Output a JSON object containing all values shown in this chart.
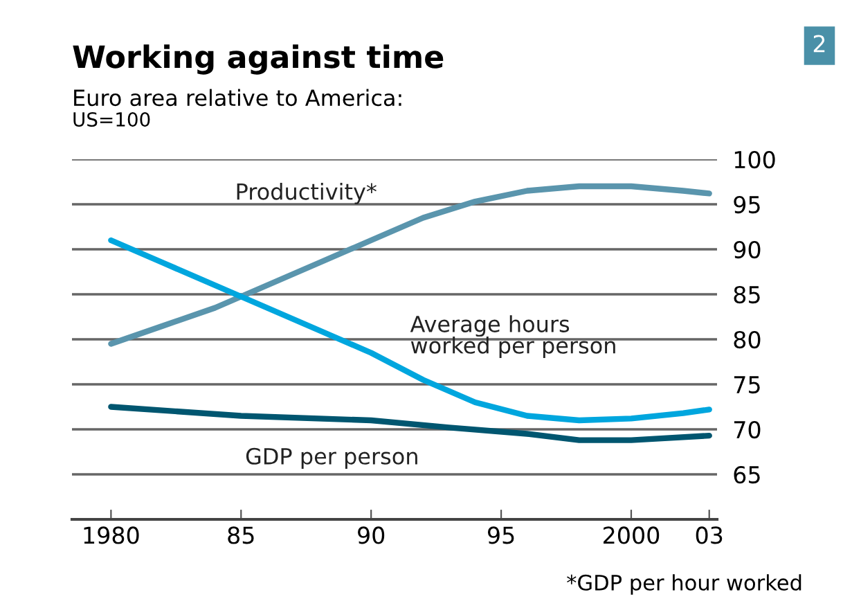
{
  "chart_data": {
    "type": "line",
    "title": "Working against time",
    "subtitle": "Euro area relative to America:",
    "ylabel": "US=100",
    "series": [
      {
        "name": "Productivity*",
        "color": "#5a95ad",
        "x": [
          1980,
          1982,
          1984,
          1986,
          1988,
          1990,
          1992,
          1994,
          1996,
          1998,
          2000,
          2002,
          2003
        ],
        "values": [
          79.5,
          81.5,
          83.5,
          86,
          88.5,
          91,
          93.5,
          95.3,
          96.5,
          97,
          97,
          96.5,
          96.2
        ]
      },
      {
        "name": "Average hours worked per person",
        "color": "#00a6de",
        "x": [
          1980,
          1982,
          1984,
          1986,
          1988,
          1990,
          1992,
          1994,
          1996,
          1998,
          2000,
          2002,
          2003
        ],
        "values": [
          91,
          88.5,
          86,
          83.5,
          81,
          78.5,
          75.5,
          73,
          71.5,
          71,
          71.2,
          71.8,
          72.2
        ]
      },
      {
        "name": "GDP per person",
        "color": "#005670",
        "x": [
          1980,
          1985,
          1990,
          1993,
          1996,
          1998,
          2000,
          2003
        ],
        "values": [
          72.5,
          71.5,
          71,
          70.2,
          69.5,
          68.8,
          68.8,
          69.3
        ]
      }
    ],
    "xlim": [
      1978.5,
      2003.3
    ],
    "xticks": [
      1980,
      {
        "value": 1985,
        "label": "85"
      },
      {
        "value": 1990,
        "label": "90"
      },
      {
        "value": 1995,
        "label": "95"
      },
      2000,
      {
        "value": 2003,
        "label": "03"
      }
    ],
    "ylim": [
      60,
      100
    ],
    "yticks": [
      65,
      70,
      75,
      80,
      85,
      90,
      95,
      100
    ],
    "grid": "y",
    "legend": false,
    "marker": "none",
    "line_style": "solid",
    "annotations": [
      "*GDP per hour worked",
      "2"
    ]
  }
}
